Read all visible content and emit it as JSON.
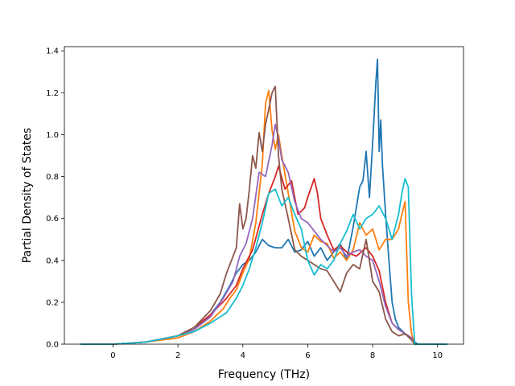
{
  "chart_data": {
    "type": "line",
    "title": "",
    "xlabel": "Frequency (THz)",
    "ylabel": "Partial Density of States",
    "xlim": [
      -1.5,
      10.8
    ],
    "ylim": [
      0.0,
      1.42
    ],
    "xticks": [
      0,
      2,
      4,
      6,
      8,
      10
    ],
    "yticks": [
      0.0,
      0.2,
      0.4,
      0.6,
      0.8,
      1.0,
      1.2,
      1.4
    ],
    "xtick_labels": [
      "0",
      "2",
      "4",
      "6",
      "8",
      "10"
    ],
    "ytick_labels": [
      "0.0",
      "0.2",
      "0.4",
      "0.6",
      "0.8",
      "1.0",
      "1.2",
      "1.4"
    ],
    "grid": false,
    "legend": "none",
    "series": [
      {
        "color": "#1f77b4",
        "x": [
          -1.0,
          0.0,
          1.0,
          2.0,
          2.5,
          3.0,
          3.3,
          3.6,
          3.8,
          4.0,
          4.2,
          4.4,
          4.6,
          4.8,
          5.0,
          5.2,
          5.4,
          5.6,
          5.8,
          6.0,
          6.2,
          6.4,
          6.6,
          6.8,
          7.0,
          7.2,
          7.4,
          7.6,
          7.7,
          7.8,
          7.9,
          8.0,
          8.1,
          8.15,
          8.2,
          8.25,
          8.3,
          8.4,
          8.5,
          8.6,
          8.7,
          8.8,
          9.0,
          9.2,
          9.3,
          9.4,
          10.0,
          10.3
        ],
        "y": [
          0.0,
          0.0,
          0.01,
          0.04,
          0.07,
          0.14,
          0.2,
          0.28,
          0.34,
          0.38,
          0.4,
          0.44,
          0.5,
          0.47,
          0.46,
          0.46,
          0.5,
          0.44,
          0.45,
          0.49,
          0.42,
          0.46,
          0.4,
          0.44,
          0.48,
          0.4,
          0.56,
          0.75,
          0.78,
          0.92,
          0.7,
          0.96,
          1.25,
          1.36,
          0.92,
          1.07,
          0.86,
          0.62,
          0.4,
          0.2,
          0.12,
          0.08,
          0.05,
          0.03,
          0.01,
          0.0,
          0.0,
          0.0
        ]
      },
      {
        "color": "#ff7f0e",
        "x": [
          -1.0,
          0.0,
          1.0,
          2.0,
          2.5,
          3.0,
          3.4,
          3.6,
          3.8,
          4.0,
          4.2,
          4.4,
          4.6,
          4.7,
          4.8,
          4.9,
          5.0,
          5.1,
          5.2,
          5.4,
          5.6,
          5.8,
          6.0,
          6.2,
          6.4,
          6.6,
          6.8,
          7.0,
          7.2,
          7.4,
          7.6,
          7.8,
          8.0,
          8.2,
          8.4,
          8.6,
          8.8,
          8.9,
          9.0,
          9.1,
          9.2,
          9.3,
          10.0,
          10.3
        ],
        "y": [
          0.0,
          0.0,
          0.01,
          0.03,
          0.06,
          0.11,
          0.17,
          0.22,
          0.26,
          0.34,
          0.41,
          0.58,
          0.86,
          1.15,
          1.21,
          1.02,
          0.93,
          1.0,
          0.9,
          0.72,
          0.54,
          0.46,
          0.44,
          0.52,
          0.49,
          0.48,
          0.41,
          0.44,
          0.4,
          0.45,
          0.58,
          0.52,
          0.55,
          0.45,
          0.5,
          0.5,
          0.55,
          0.62,
          0.68,
          0.2,
          0.05,
          0.0,
          0.0,
          0.0
        ]
      },
      {
        "color": "#d62728",
        "x": [
          -1.0,
          0.0,
          1.0,
          2.0,
          2.5,
          3.0,
          3.5,
          3.8,
          4.0,
          4.3,
          4.6,
          4.8,
          5.0,
          5.1,
          5.3,
          5.5,
          5.7,
          5.9,
          6.0,
          6.2,
          6.3,
          6.4,
          6.6,
          6.8,
          7.0,
          7.2,
          7.5,
          7.8,
          8.0,
          8.2,
          8.4,
          8.6,
          8.8,
          9.0,
          9.2,
          9.3,
          10.0,
          10.3
        ],
        "y": [
          0.0,
          0.0,
          0.01,
          0.04,
          0.08,
          0.14,
          0.22,
          0.28,
          0.36,
          0.45,
          0.62,
          0.72,
          0.8,
          0.85,
          0.74,
          0.78,
          0.62,
          0.65,
          0.7,
          0.79,
          0.72,
          0.6,
          0.52,
          0.45,
          0.47,
          0.44,
          0.42,
          0.46,
          0.42,
          0.35,
          0.2,
          0.1,
          0.07,
          0.05,
          0.03,
          0.0,
          0.0,
          0.0
        ]
      },
      {
        "color": "#9467bd",
        "x": [
          -1.0,
          0.0,
          1.0,
          2.0,
          2.5,
          3.0,
          3.4,
          3.7,
          3.9,
          4.1,
          4.3,
          4.5,
          4.7,
          4.9,
          5.0,
          5.1,
          5.2,
          5.4,
          5.6,
          5.8,
          6.0,
          6.2,
          6.4,
          6.6,
          6.8,
          7.0,
          7.2,
          7.4,
          7.6,
          7.8,
          8.0,
          8.2,
          8.4,
          8.6,
          8.8,
          9.0,
          9.2,
          9.3,
          10.0,
          10.3
        ],
        "y": [
          0.0,
          0.0,
          0.01,
          0.04,
          0.07,
          0.13,
          0.22,
          0.3,
          0.42,
          0.48,
          0.6,
          0.82,
          0.8,
          0.95,
          1.05,
          0.98,
          0.88,
          0.82,
          0.68,
          0.6,
          0.58,
          0.54,
          0.5,
          0.47,
          0.44,
          0.46,
          0.42,
          0.44,
          0.45,
          0.42,
          0.4,
          0.3,
          0.18,
          0.1,
          0.07,
          0.05,
          0.03,
          0.0,
          0.0,
          0.0
        ]
      },
      {
        "color": "#8c564b",
        "x": [
          -1.0,
          0.0,
          1.0,
          2.0,
          2.5,
          3.0,
          3.3,
          3.5,
          3.7,
          3.8,
          3.9,
          4.0,
          4.1,
          4.2,
          4.3,
          4.4,
          4.5,
          4.6,
          4.7,
          4.8,
          4.9,
          5.0,
          5.1,
          5.2,
          5.4,
          5.6,
          5.8,
          6.0,
          6.2,
          6.4,
          6.6,
          6.8,
          7.0,
          7.2,
          7.4,
          7.6,
          7.8,
          8.0,
          8.2,
          8.4,
          8.6,
          8.8,
          9.0,
          9.2,
          9.3,
          10.0,
          10.3
        ],
        "y": [
          0.0,
          0.0,
          0.01,
          0.04,
          0.08,
          0.16,
          0.24,
          0.34,
          0.42,
          0.46,
          0.67,
          0.55,
          0.6,
          0.74,
          0.9,
          0.84,
          1.01,
          0.92,
          1.05,
          1.12,
          1.2,
          1.23,
          0.9,
          0.74,
          0.6,
          0.45,
          0.42,
          0.4,
          0.38,
          0.36,
          0.35,
          0.3,
          0.25,
          0.34,
          0.38,
          0.36,
          0.5,
          0.3,
          0.25,
          0.12,
          0.06,
          0.04,
          0.05,
          0.02,
          0.0,
          0.0,
          0.0
        ]
      },
      {
        "color": "#17becf",
        "x": [
          -1.0,
          0.0,
          1.0,
          2.0,
          2.5,
          3.0,
          3.5,
          3.8,
          4.0,
          4.2,
          4.4,
          4.6,
          4.8,
          5.0,
          5.2,
          5.4,
          5.6,
          5.8,
          6.0,
          6.2,
          6.4,
          6.6,
          6.8,
          7.0,
          7.2,
          7.4,
          7.6,
          7.8,
          8.0,
          8.2,
          8.4,
          8.6,
          8.8,
          8.9,
          9.0,
          9.1,
          9.2,
          9.3,
          10.0,
          10.3
        ],
        "y": [
          0.0,
          0.0,
          0.01,
          0.04,
          0.06,
          0.1,
          0.15,
          0.22,
          0.28,
          0.36,
          0.46,
          0.58,
          0.72,
          0.74,
          0.66,
          0.7,
          0.62,
          0.55,
          0.4,
          0.33,
          0.38,
          0.36,
          0.4,
          0.48,
          0.54,
          0.62,
          0.55,
          0.6,
          0.62,
          0.66,
          0.6,
          0.5,
          0.62,
          0.72,
          0.79,
          0.75,
          0.23,
          0.0,
          0.0,
          0.0
        ]
      }
    ]
  }
}
